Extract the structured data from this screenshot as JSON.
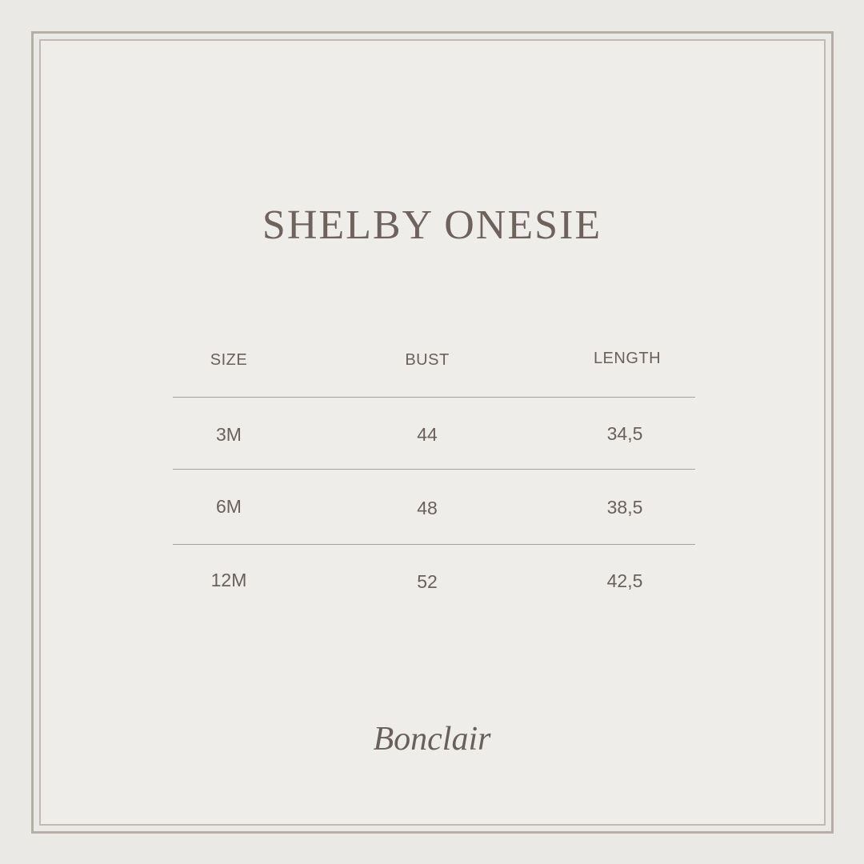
{
  "title": "SHELBY ONESIE",
  "table": {
    "headers": [
      "SIZE",
      "BUST",
      "LENGTH"
    ],
    "rows": [
      [
        "3M",
        "44",
        "34,5"
      ],
      [
        "6M",
        "48",
        "38,5"
      ],
      [
        "12M",
        "52",
        "42,5"
      ]
    ]
  },
  "brand": "Bonclair",
  "colors": {
    "background": "#ebe9e5",
    "border": "#b7aea8",
    "text": "#6b605b"
  }
}
